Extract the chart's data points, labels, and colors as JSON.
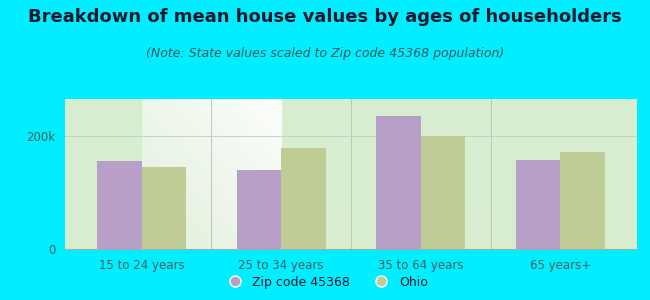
{
  "title": "Breakdown of mean house values by ages of householders",
  "subtitle": "(Note: State values scaled to Zip code 45368 population)",
  "categories": [
    "15 to 24 years",
    "25 to 34 years",
    "35 to 64 years",
    "65 years+"
  ],
  "zip_values": [
    155000,
    140000,
    235000,
    158000
  ],
  "ohio_values": [
    145000,
    178000,
    200000,
    172000
  ],
  "zip_color": "#b89fc8",
  "ohio_color": "#c0cc96",
  "background_outer": "#00eeff",
  "yticks": [
    0,
    200000
  ],
  "ytick_labels": [
    "0",
    "200k"
  ],
  "ylim": [
    0,
    265000
  ],
  "legend_zip": "Zip code 45368",
  "legend_ohio": "Ohio",
  "bar_width": 0.32,
  "title_fontsize": 13,
  "subtitle_fontsize": 9,
  "axis_label_fontsize": 8.5,
  "legend_fontsize": 9,
  "title_color": "#1a1a2e",
  "subtitle_color": "#2a5a5a",
  "tick_color": "#3a6060"
}
